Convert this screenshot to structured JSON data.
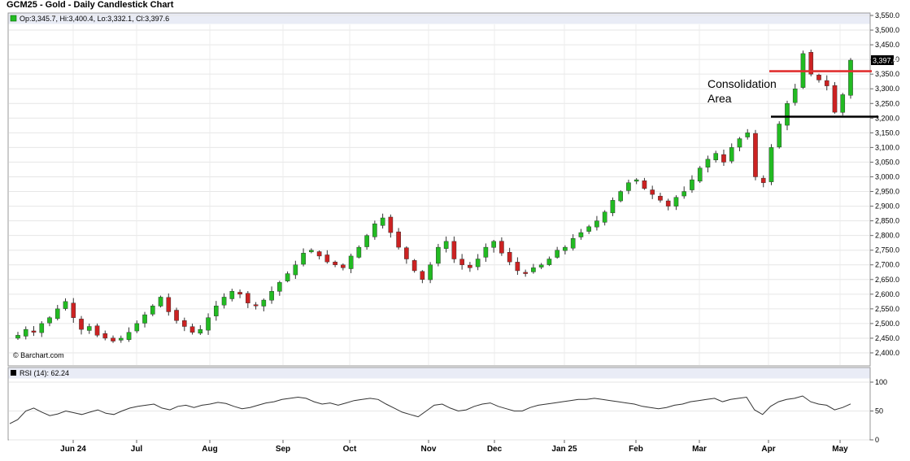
{
  "title": "GCM25 - Gold - Daily Candlestick Chart",
  "legend": "Op:3,345.7, Hi:3,400.4, Lo:3,332.1, Cl:3,397.6",
  "watermark": "© Barchart.com",
  "last_price_label": "3,397.6",
  "annotation": [
    "Consolidation",
    "Area"
  ],
  "rsi_legend": "RSI (14): 62.24",
  "colors": {
    "up": "#22bb22",
    "down": "#cc2222",
    "rsi_line": "#333333",
    "resistance": "#e03030",
    "support": "#000000",
    "panel_header": "#e9ecf6"
  },
  "chart_data": [
    {
      "type": "candlestick",
      "title": "GCM25 - Gold - Daily Candlestick Chart",
      "ylim": [
        2400,
        3550
      ],
      "yticks": [
        2400,
        2450,
        2500,
        2550,
        2600,
        2650,
        2700,
        2750,
        2800,
        2850,
        2900,
        2950,
        3000,
        3050,
        3100,
        3150,
        3200,
        3250,
        3300,
        3350,
        3400,
        3450,
        3500,
        3550
      ],
      "ytick_labels": [
        "2,400.0",
        "2,450.0",
        "2,500.0",
        "2,550.0",
        "2,600.0",
        "2,650.0",
        "2,700.0",
        "2,750.0",
        "2,800.0",
        "2,850.0",
        "2,900.0",
        "2,950.0",
        "3,000.0",
        "3,050.0",
        "3,100.0",
        "3,150.0",
        "3,200.0",
        "3,250.0",
        "3,300.0",
        "3,350.0",
        "3,400.0",
        "3,450.0",
        "3,500.0",
        "3,550.0"
      ],
      "x_labels": [
        "Jun 24",
        "Jul",
        "Aug",
        "Sep",
        "Oct",
        "Nov",
        "Dec",
        "Jan 25",
        "Feb",
        "Mar",
        "Apr",
        "May"
      ],
      "approx_close": [
        2460,
        2480,
        2470,
        2500,
        2520,
        2550,
        2575,
        2520,
        2480,
        2490,
        2460,
        2450,
        2440,
        2450,
        2470,
        2500,
        2530,
        2560,
        2590,
        2540,
        2510,
        2490,
        2470,
        2480,
        2520,
        2560,
        2590,
        2610,
        2600,
        2570,
        2560,
        2580,
        2610,
        2640,
        2670,
        2700,
        2740,
        2750,
        2730,
        2710,
        2700,
        2690,
        2730,
        2760,
        2800,
        2840,
        2860,
        2810,
        2760,
        2720,
        2680,
        2650,
        2700,
        2760,
        2780,
        2720,
        2700,
        2690,
        2720,
        2760,
        2780,
        2740,
        2710,
        2680,
        2670,
        2690,
        2700,
        2720,
        2750,
        2760,
        2790,
        2810,
        2830,
        2850,
        2880,
        2920,
        2950,
        2980,
        2990,
        2960,
        2940,
        2920,
        2900,
        2930,
        2950,
        2990,
        3030,
        3060,
        3080,
        3050,
        3100,
        3130,
        3150,
        3000,
        2980,
        3100,
        3180,
        3250,
        3300,
        3420,
        3350,
        3330,
        3310,
        3220,
        3280,
        3397.6
      ],
      "resistance_level": 3360,
      "support_level": 3205,
      "annotation": "Consolidation Area"
    },
    {
      "type": "line",
      "title": "RSI (14): 62.24",
      "ylim": [
        0,
        100
      ],
      "yticks": [
        0,
        50,
        100
      ],
      "last_value": 62.24,
      "approx_values": [
        28,
        35,
        50,
        55,
        48,
        42,
        45,
        50,
        47,
        44,
        48,
        52,
        46,
        44,
        50,
        55,
        58,
        60,
        62,
        55,
        52,
        58,
        60,
        56,
        60,
        62,
        65,
        63,
        58,
        54,
        56,
        60,
        64,
        66,
        70,
        72,
        74,
        72,
        66,
        62,
        64,
        60,
        64,
        68,
        70,
        72,
        70,
        62,
        55,
        48,
        44,
        40,
        50,
        60,
        62,
        55,
        50,
        52,
        58,
        62,
        64,
        58,
        54,
        50,
        50,
        56,
        60,
        62,
        64,
        66,
        68,
        70,
        70,
        72,
        70,
        68,
        66,
        64,
        62,
        58,
        56,
        54,
        56,
        60,
        62,
        66,
        68,
        70,
        72,
        66,
        70,
        72,
        74,
        52,
        44,
        58,
        66,
        70,
        72,
        76,
        66,
        62,
        60,
        52,
        56,
        62.24
      ]
    }
  ]
}
